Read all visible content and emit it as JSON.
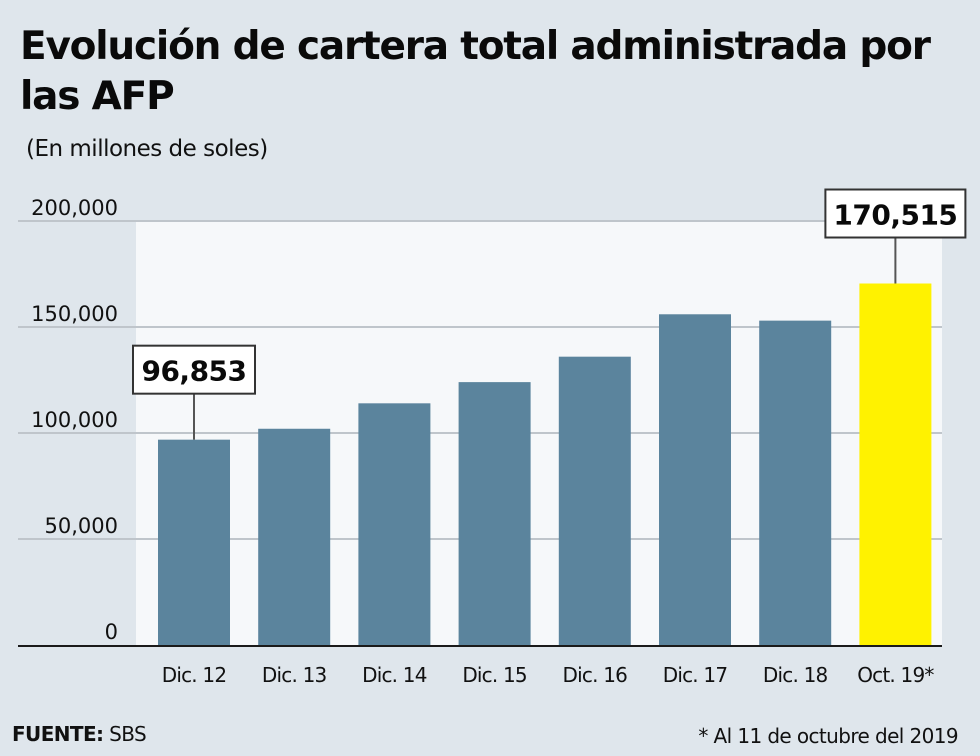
{
  "chart_data": {
    "type": "bar",
    "title": "Evolución de cartera total administrada por las AFP",
    "subtitle": "(En millones de soles)",
    "xlabel": "",
    "ylabel": "",
    "categories": [
      "Dic. 12",
      "Dic. 13",
      "Dic. 14",
      "Dic. 15",
      "Dic. 16",
      "Dic. 17",
      "Dic. 18",
      "Oct. 19*"
    ],
    "values": [
      96853,
      102000,
      114000,
      124000,
      136000,
      156000,
      153000,
      170515
    ],
    "ylim": [
      0,
      200000
    ],
    "yticks": [
      0,
      50000,
      100000,
      150000,
      200000
    ],
    "ytick_labels": [
      "0",
      "50,000",
      "100,000",
      "150,000",
      "200,000"
    ],
    "grid": true,
    "colors": {
      "default": "#5b849d",
      "highlight": "#fff200"
    },
    "highlight_index": 7,
    "annotations": [
      {
        "index": 0,
        "label": "96,853"
      },
      {
        "index": 7,
        "label": "170,515"
      }
    ],
    "source_label": "FUENTE:",
    "source_value": "SBS",
    "footnote": "* Al 11 de octubre del 2019"
  }
}
